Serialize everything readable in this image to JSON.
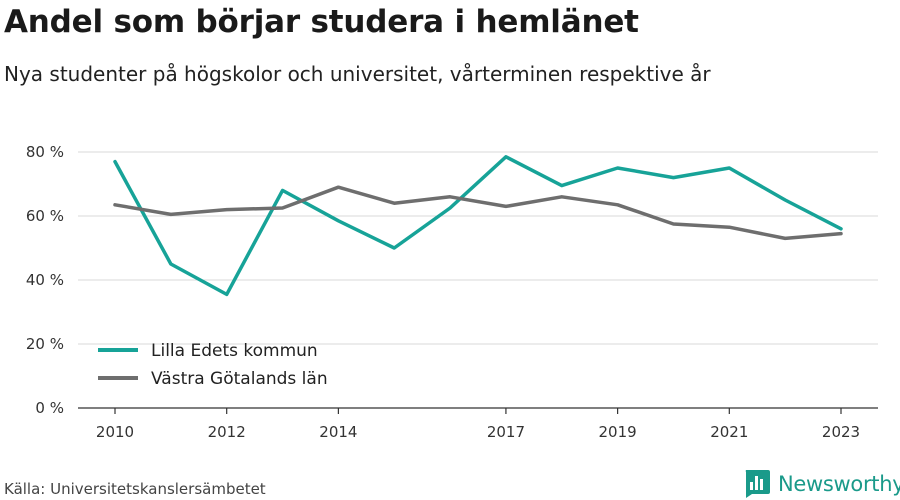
{
  "title": "Andel som börjar studera i hemlänet",
  "subtitle": "Nya studenter på högskolor och universitet, vårterminen respektive år",
  "source": "Källa: Universitetskanslersämbetet",
  "brand": {
    "name": "Newsworthy",
    "icon": "bar-chart-logo-icon",
    "color": "#1a9a8a"
  },
  "chart_data": {
    "type": "line",
    "x": [
      2010,
      2011,
      2012,
      2013,
      2014,
      2015,
      2016,
      2017,
      2018,
      2019,
      2020,
      2021,
      2022,
      2023
    ],
    "x_ticks": [
      2010,
      2012,
      2014,
      2017,
      2019,
      2021,
      2023
    ],
    "y_ticks": [
      {
        "value": 0,
        "label": "0 %"
      },
      {
        "value": 20,
        "label": "20 %"
      },
      {
        "value": 40,
        "label": "40 %"
      },
      {
        "value": 60,
        "label": "60 %"
      },
      {
        "value": 80,
        "label": "80 %"
      }
    ],
    "ylim": [
      0,
      80
    ],
    "xlim": [
      2010,
      2023
    ],
    "grid": true,
    "legend_position": "bottom-left",
    "series": [
      {
        "name": "Lilla Edets kommun",
        "color": "#17a398",
        "values": [
          77,
          45,
          35.5,
          68,
          58.5,
          50,
          62.5,
          78.5,
          69.5,
          75,
          72,
          75,
          65,
          56
        ]
      },
      {
        "name": "Västra Götalands län",
        "color": "#6e6e6e",
        "values": [
          63.5,
          60.5,
          62,
          62.5,
          69,
          64,
          66,
          63,
          66,
          63.5,
          57.5,
          56.5,
          53,
          54.5
        ]
      }
    ]
  }
}
